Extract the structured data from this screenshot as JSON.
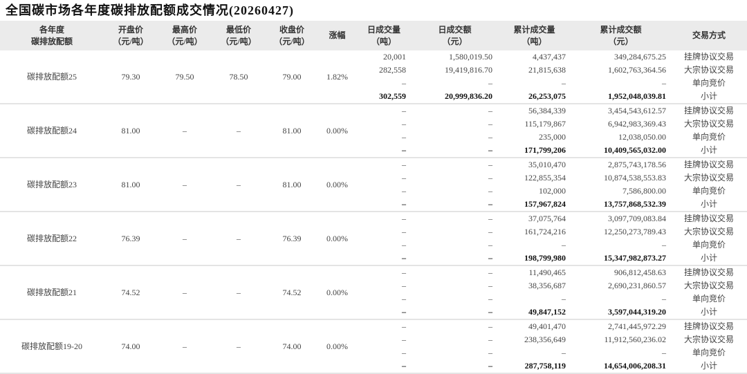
{
  "title": "全国碳市场各年度碳排放配额成交情况(20260427)",
  "headers": [
    [
      "各年度",
      "碳排放配额"
    ],
    [
      "开盘价",
      "（元/吨）"
    ],
    [
      "最高价",
      "（元/吨）"
    ],
    [
      "最低价",
      "（元/吨）"
    ],
    [
      "收盘价",
      "（元/吨）"
    ],
    [
      "涨幅"
    ],
    [
      "日成交量",
      "（吨）"
    ],
    [
      "日成交额",
      "（元）"
    ],
    [
      "累计成交量",
      "（吨）"
    ],
    [
      "累计成交额",
      "（元）"
    ],
    [
      "交易方式"
    ]
  ],
  "groups": [
    {
      "name": "碳排放配额25",
      "open": "79.30",
      "high": "79.50",
      "low": "78.50",
      "close": "79.00",
      "change": "1.82%",
      "rows": [
        {
          "daily_vol": "20,001",
          "daily_amt": "1,580,019.50",
          "cum_vol": "4,437,437",
          "cum_amt": "349,284,675.25",
          "method": "挂牌协议交易"
        },
        {
          "daily_vol": "282,558",
          "daily_amt": "19,419,816.70",
          "cum_vol": "21,815,638",
          "cum_amt": "1,602,763,364.56",
          "method": "大宗协议交易"
        },
        {
          "daily_vol": "–",
          "daily_amt": "–",
          "cum_vol": "–",
          "cum_amt": "–",
          "method": "单向竞价"
        },
        {
          "daily_vol": "302,559",
          "daily_amt": "20,999,836.20",
          "cum_vol": "26,253,075",
          "cum_amt": "1,952,048,039.81",
          "method": "小计"
        }
      ]
    },
    {
      "name": "碳排放配额24",
      "open": "81.00",
      "high": "–",
      "low": "–",
      "close": "81.00",
      "change": "0.00%",
      "rows": [
        {
          "daily_vol": "–",
          "daily_amt": "–",
          "cum_vol": "56,384,339",
          "cum_amt": "3,454,543,612.57",
          "method": "挂牌协议交易"
        },
        {
          "daily_vol": "–",
          "daily_amt": "–",
          "cum_vol": "115,179,867",
          "cum_amt": "6,942,983,369.43",
          "method": "大宗协议交易"
        },
        {
          "daily_vol": "–",
          "daily_amt": "–",
          "cum_vol": "235,000",
          "cum_amt": "12,038,050.00",
          "method": "单向竞价"
        },
        {
          "daily_vol": "–",
          "daily_amt": "–",
          "cum_vol": "171,799,206",
          "cum_amt": "10,409,565,032.00",
          "method": "小计"
        }
      ]
    },
    {
      "name": "碳排放配额23",
      "open": "81.00",
      "high": "–",
      "low": "–",
      "close": "81.00",
      "change": "0.00%",
      "rows": [
        {
          "daily_vol": "–",
          "daily_amt": "–",
          "cum_vol": "35,010,470",
          "cum_amt": "2,875,743,178.56",
          "method": "挂牌协议交易"
        },
        {
          "daily_vol": "–",
          "daily_amt": "–",
          "cum_vol": "122,855,354",
          "cum_amt": "10,874,538,553.83",
          "method": "大宗协议交易"
        },
        {
          "daily_vol": "–",
          "daily_amt": "–",
          "cum_vol": "102,000",
          "cum_amt": "7,586,800.00",
          "method": "单向竞价"
        },
        {
          "daily_vol": "–",
          "daily_amt": "–",
          "cum_vol": "157,967,824",
          "cum_amt": "13,757,868,532.39",
          "method": "小计"
        }
      ]
    },
    {
      "name": "碳排放配额22",
      "open": "76.39",
      "high": "–",
      "low": "–",
      "close": "76.39",
      "change": "0.00%",
      "rows": [
        {
          "daily_vol": "–",
          "daily_amt": "–",
          "cum_vol": "37,075,764",
          "cum_amt": "3,097,709,083.84",
          "method": "挂牌协议交易"
        },
        {
          "daily_vol": "–",
          "daily_amt": "–",
          "cum_vol": "161,724,216",
          "cum_amt": "12,250,273,789.43",
          "method": "大宗协议交易"
        },
        {
          "daily_vol": "–",
          "daily_amt": "–",
          "cum_vol": "–",
          "cum_amt": "–",
          "method": "单向竞价"
        },
        {
          "daily_vol": "–",
          "daily_amt": "–",
          "cum_vol": "198,799,980",
          "cum_amt": "15,347,982,873.27",
          "method": "小计"
        }
      ]
    },
    {
      "name": "碳排放配额21",
      "open": "74.52",
      "high": "–",
      "low": "–",
      "close": "74.52",
      "change": "0.00%",
      "rows": [
        {
          "daily_vol": "–",
          "daily_amt": "–",
          "cum_vol": "11,490,465",
          "cum_amt": "906,812,458.63",
          "method": "挂牌协议交易"
        },
        {
          "daily_vol": "–",
          "daily_amt": "–",
          "cum_vol": "38,356,687",
          "cum_amt": "2,690,231,860.57",
          "method": "大宗协议交易"
        },
        {
          "daily_vol": "–",
          "daily_amt": "–",
          "cum_vol": "–",
          "cum_amt": "–",
          "method": "单向竞价"
        },
        {
          "daily_vol": "–",
          "daily_amt": "–",
          "cum_vol": "49,847,152",
          "cum_amt": "3,597,044,319.20",
          "method": "小计"
        }
      ]
    },
    {
      "name": "碳排放配额19-20",
      "open": "74.00",
      "high": "–",
      "low": "–",
      "close": "74.00",
      "change": "0.00%",
      "rows": [
        {
          "daily_vol": "–",
          "daily_amt": "–",
          "cum_vol": "49,401,470",
          "cum_amt": "2,741,445,972.29",
          "method": "挂牌协议交易"
        },
        {
          "daily_vol": "–",
          "daily_amt": "–",
          "cum_vol": "238,356,649",
          "cum_amt": "11,912,560,236.02",
          "method": "大宗协议交易"
        },
        {
          "daily_vol": "–",
          "daily_amt": "–",
          "cum_vol": "–",
          "cum_amt": "–",
          "method": "单向竞价"
        },
        {
          "daily_vol": "–",
          "daily_amt": "–",
          "cum_vol": "287,758,119",
          "cum_amt": "14,654,006,208.31",
          "method": "小计"
        }
      ]
    }
  ]
}
